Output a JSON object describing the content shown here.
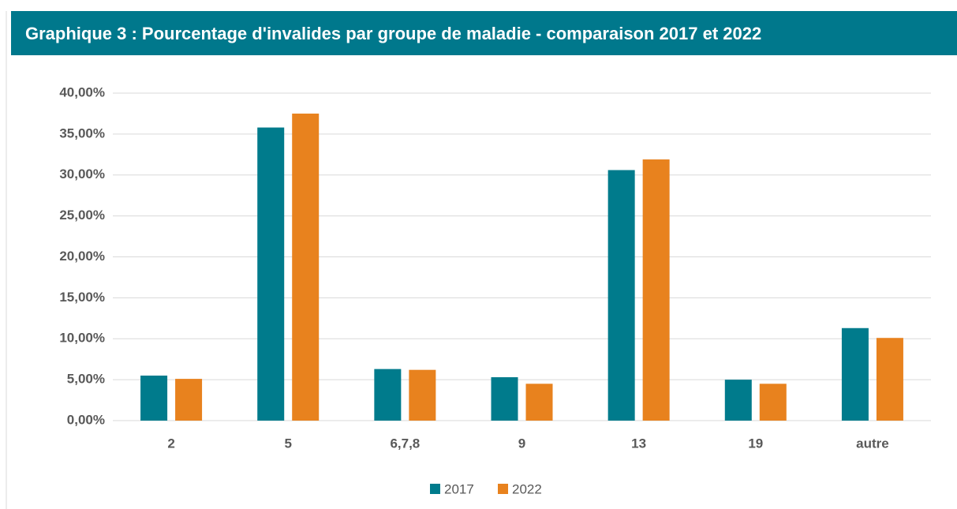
{
  "chart_data": {
    "type": "bar",
    "title": "Graphique 3 : Pourcentage d'invalides par groupe de maladie - comparaison 2017 et 2022",
    "categories": [
      "2",
      "5",
      "6,7,8",
      "9",
      "13",
      "19",
      "autre"
    ],
    "series": [
      {
        "name": "2017",
        "color": "#007b8c",
        "values": [
          5.5,
          35.8,
          6.3,
          5.3,
          30.6,
          5.0,
          11.3
        ]
      },
      {
        "name": "2022",
        "color": "#e8821e",
        "values": [
          5.1,
          37.5,
          6.2,
          4.5,
          31.9,
          4.5,
          10.1
        ]
      }
    ],
    "ylim": [
      0,
      40
    ],
    "yticks": [
      {
        "value": 0,
        "label": "0,00%"
      },
      {
        "value": 5,
        "label": "5,00%"
      },
      {
        "value": 10,
        "label": "10,00%"
      },
      {
        "value": 15,
        "label": "15,00%"
      },
      {
        "value": 20,
        "label": "20,00%"
      },
      {
        "value": 25,
        "label": "25,00%"
      },
      {
        "value": 30,
        "label": "30,00%"
      },
      {
        "value": 35,
        "label": "35,00%"
      },
      {
        "value": 40,
        "label": "40,00%"
      }
    ],
    "grid": true,
    "legend": "bottom"
  }
}
